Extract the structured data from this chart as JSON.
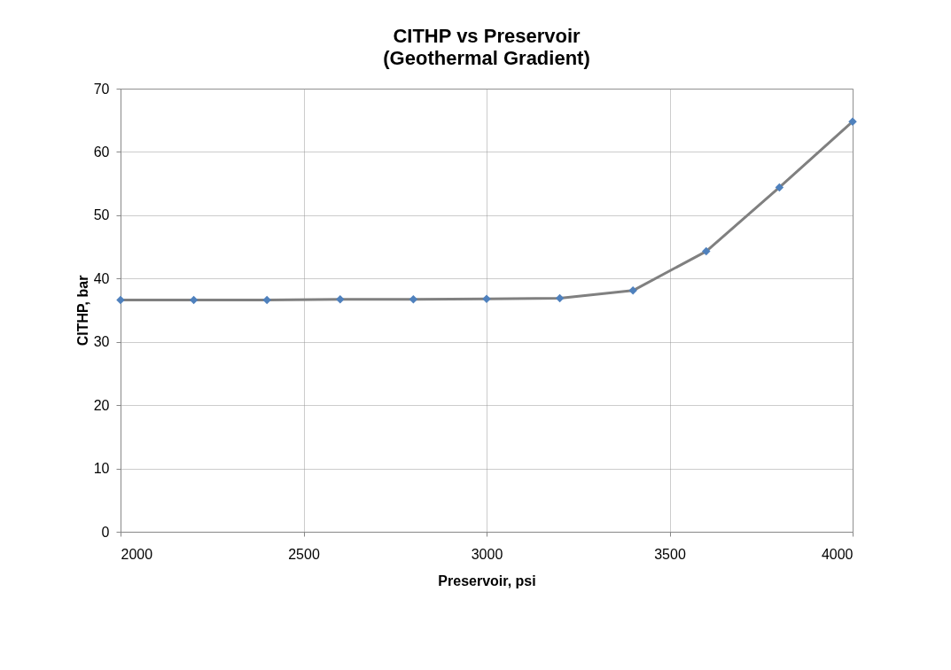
{
  "chart_data": {
    "type": "line",
    "title": "CITHP vs Preservoir",
    "subtitle": "(Geothermal Gradient)",
    "xlabel": "Preservoir, psi",
    "ylabel": "CITHP, bar",
    "x": [
      2000,
      2200,
      2400,
      2600,
      2800,
      3000,
      3200,
      3400,
      3600,
      3800,
      4000
    ],
    "series": [
      {
        "color": "#808080",
        "colors": [
          "#4f81bd",
          "#4f81bd",
          "#4f81bd",
          "#4f81bd",
          "#4f81bd",
          "#4f81bd",
          "#4f81bd",
          "#4f81bd",
          "#4f81bd",
          "#4f81bd",
          "#4f81bd"
        ],
        "values": [
          36.6,
          36.6,
          36.6,
          36.7,
          36.7,
          36.8,
          36.9,
          38.1,
          44.3,
          54.4,
          64.8
        ]
      }
    ],
    "xlim": [
      2000,
      4000
    ],
    "xticks": [
      2000,
      2500,
      3000,
      3500,
      4000
    ],
    "ylim": [
      0,
      70
    ],
    "yticks": [
      0,
      10,
      20,
      30,
      40,
      50,
      60,
      70
    ],
    "grid": true,
    "marker": "diamond",
    "line_style": "solid"
  }
}
